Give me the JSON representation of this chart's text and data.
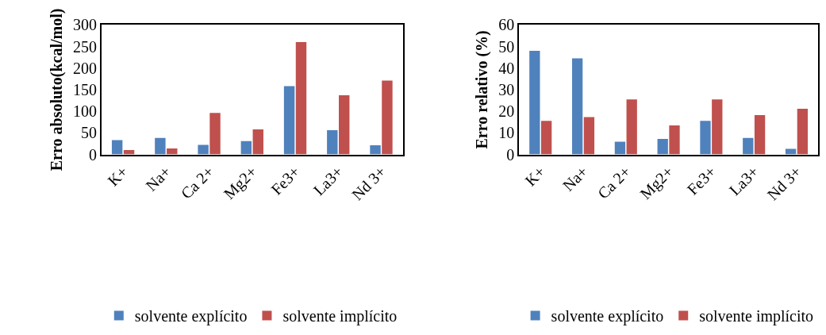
{
  "chart_data": [
    {
      "type": "bar",
      "ylabel": "Erro absoluto(kcal/mol)",
      "categories": [
        "K+",
        "Na+",
        "Ca 2+",
        "Mg2+",
        "Fe3+",
        "La3+",
        "Nd 3+"
      ],
      "series": [
        {
          "name": "solvente explícito",
          "color": "#4f81bd",
          "values": [
            33,
            38,
            22,
            31,
            158,
            56,
            21
          ]
        },
        {
          "name": "solvente implícito",
          "color": "#c0504d",
          "values": [
            10,
            14,
            96,
            58,
            260,
            137,
            171
          ]
        }
      ],
      "ylim": [
        0,
        300
      ],
      "yticks": [
        0,
        50,
        100,
        150,
        200,
        250,
        300
      ],
      "grid": false,
      "legend": "bottom"
    },
    {
      "type": "bar",
      "ylabel": "Erro relativo (%)",
      "categories": [
        "K+",
        "Na+",
        "Ca 2+",
        "Mg2+",
        "Fe3+",
        "La3+",
        "Nd 3+"
      ],
      "series": [
        {
          "name": "solvente explícito",
          "color": "#4f81bd",
          "values": [
            48,
            44.5,
            5.9,
            7.2,
            15.5,
            7.6,
            2.6
          ]
        },
        {
          "name": "solvente implícito",
          "color": "#c0504d",
          "values": [
            15.5,
            17.3,
            25.5,
            13.4,
            25.5,
            18.2,
            21.1
          ]
        }
      ],
      "ylim": [
        0,
        60
      ],
      "yticks": [
        0,
        10,
        20,
        30,
        40,
        50,
        60
      ],
      "grid": false,
      "legend": "bottom"
    }
  ]
}
